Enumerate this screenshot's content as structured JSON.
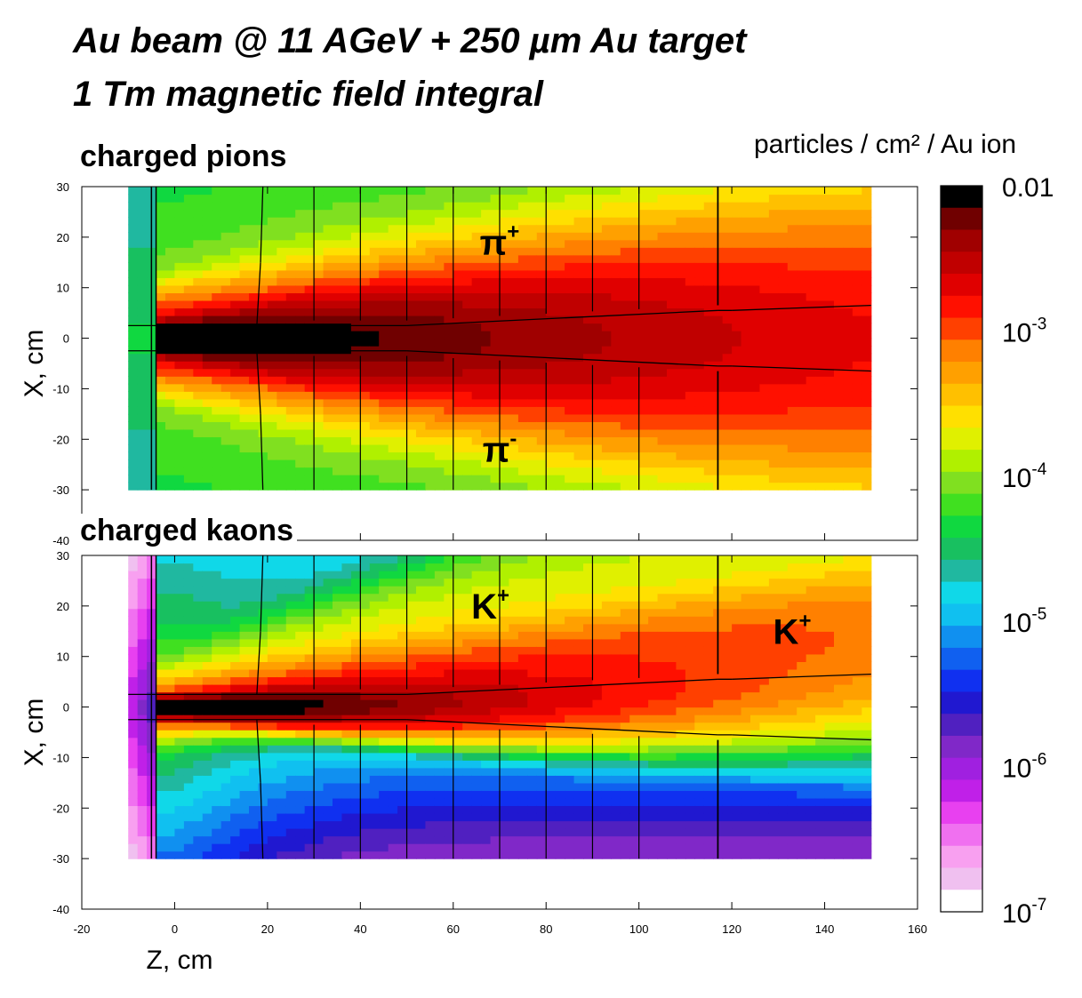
{
  "title_line1": "Au beam @ 11 AGeV + 250 µm Au target",
  "title_line2": "1 Tm magnetic field integral",
  "colorbar": {
    "label": "particles / cm² / Au ion",
    "scale": "log",
    "range": [
      1e-07,
      0.01
    ],
    "ticks": [
      {
        "value": 0.01,
        "base": "0.01",
        "sup": ""
      },
      {
        "value": 0.001,
        "base": "10",
        "sup": "-3"
      },
      {
        "value": 0.0001,
        "base": "10",
        "sup": "-4"
      },
      {
        "value": 1e-05,
        "base": "10",
        "sup": "-5"
      },
      {
        "value": 1e-06,
        "base": "10",
        "sup": "-6"
      },
      {
        "value": 1e-07,
        "base": "10",
        "sup": "-7"
      }
    ],
    "colors": [
      "#ffffff",
      "#f0c0f0",
      "#f8a0f0",
      "#f070f0",
      "#e840f0",
      "#c020e8",
      "#a020e0",
      "#8028c8",
      "#5020c0",
      "#2018d0",
      "#1030f0",
      "#1060f0",
      "#1090f0",
      "#10c0f0",
      "#10d8e8",
      "#20b8a0",
      "#18c060",
      "#10d840",
      "#40e020",
      "#80e020",
      "#b0f000",
      "#e0f000",
      "#ffe000",
      "#ffc000",
      "#ffa000",
      "#ff8000",
      "#ff4000",
      "#ff1000",
      "#e00000",
      "#c00000",
      "#a00000",
      "#700000",
      "#000000"
    ]
  },
  "chart_data": [
    {
      "type": "heatmap",
      "title": "charged pions",
      "xlabel": "Z, cm",
      "ylabel": "X, cm",
      "xlim": [
        -20,
        160
      ],
      "ylim": [
        -40,
        30
      ],
      "xticks": [
        -20,
        0,
        20,
        40,
        60,
        80,
        100,
        120,
        140,
        160
      ],
      "yticks": [
        30,
        20,
        10,
        0,
        -10,
        -20,
        -30,
        -40
      ],
      "data_extent": {
        "z": [
          -10,
          150
        ],
        "x": [
          -30,
          30
        ]
      },
      "color_scale": "log",
      "color_range": [
        1e-07,
        0.01
      ],
      "peak_value": 0.01,
      "annotations": [
        {
          "base": "π",
          "sup": "+",
          "z": 70,
          "x": 19
        },
        {
          "base": "π",
          "sup": "-",
          "z": 70,
          "x": -22
        }
      ]
    },
    {
      "type": "heatmap",
      "title": "charged kaons",
      "xlabel": "Z, cm",
      "ylabel": "X, cm",
      "xlim": [
        -20,
        160
      ],
      "ylim": [
        -40,
        30
      ],
      "xticks": [
        -20,
        0,
        20,
        40,
        60,
        80,
        100,
        120,
        140,
        160
      ],
      "yticks": [
        30,
        20,
        10,
        0,
        -10,
        -20,
        -30,
        -40
      ],
      "data_extent": {
        "z": [
          -10,
          150
        ],
        "x": [
          -30,
          30
        ]
      },
      "color_scale": "log",
      "color_range": [
        1e-07,
        0.01
      ],
      "peak_value": 0.01,
      "annotations": [
        {
          "base": "K",
          "sup": "+",
          "z": 68,
          "x": 20
        },
        {
          "base": "K",
          "sup": "+",
          "z": 133,
          "x": 15
        }
      ]
    }
  ]
}
